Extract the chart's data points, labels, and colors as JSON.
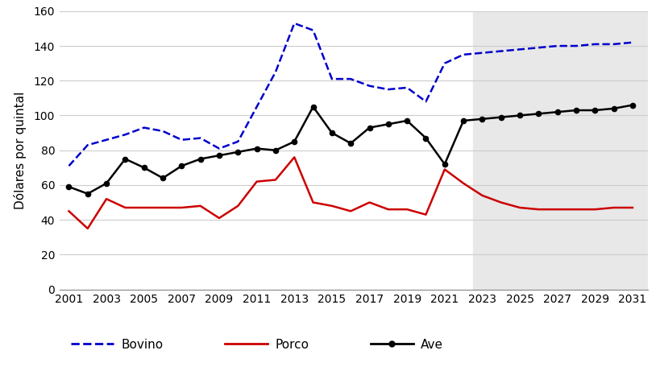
{
  "title": "",
  "ylabel": "Dólares por quintal",
  "bg_color": "#ffffff",
  "shade_color": "#e8e8e8",
  "shade_start": 2022.5,
  "shade_end": 2032,
  "ylim": [
    0,
    160
  ],
  "yticks": [
    0,
    20,
    40,
    60,
    80,
    100,
    120,
    140,
    160
  ],
  "xticks": [
    2001,
    2003,
    2005,
    2007,
    2009,
    2011,
    2013,
    2015,
    2017,
    2019,
    2021,
    2023,
    2025,
    2027,
    2029,
    2031
  ],
  "xlim_left": 2000.5,
  "xlim_right": 2031.8,
  "bovino": {
    "label": "Bovino",
    "color": "#0000cc",
    "years": [
      2001,
      2002,
      2003,
      2004,
      2005,
      2006,
      2007,
      2008,
      2009,
      2010,
      2011,
      2012,
      2013,
      2014,
      2015,
      2016,
      2017,
      2018,
      2019,
      2020,
      2021,
      2022,
      2023,
      2024,
      2025,
      2026,
      2027,
      2028,
      2029,
      2030,
      2031
    ],
    "values": [
      71,
      83,
      86,
      89,
      93,
      91,
      86,
      87,
      81,
      85,
      105,
      125,
      153,
      149,
      121,
      121,
      117,
      115,
      116,
      108,
      130,
      135,
      136,
      137,
      138,
      139,
      140,
      140,
      141,
      141,
      142
    ]
  },
  "porco": {
    "label": "Porco",
    "color": "#cc0000",
    "years": [
      2001,
      2002,
      2003,
      2004,
      2005,
      2006,
      2007,
      2008,
      2009,
      2010,
      2011,
      2012,
      2013,
      2014,
      2015,
      2016,
      2017,
      2018,
      2019,
      2020,
      2021,
      2022,
      2023,
      2024,
      2025,
      2026,
      2027,
      2028,
      2029,
      2030,
      2031
    ],
    "values": [
      45,
      35,
      52,
      47,
      47,
      47,
      47,
      48,
      41,
      48,
      62,
      63,
      76,
      50,
      48,
      45,
      50,
      46,
      46,
      43,
      69,
      61,
      54,
      50,
      47,
      46,
      46,
      46,
      46,
      47,
      47
    ]
  },
  "ave": {
    "label": "Ave",
    "color": "#000000",
    "years": [
      2001,
      2002,
      2003,
      2004,
      2005,
      2006,
      2007,
      2008,
      2009,
      2010,
      2011,
      2012,
      2013,
      2014,
      2015,
      2016,
      2017,
      2018,
      2019,
      2020,
      2021,
      2022,
      2023,
      2024,
      2025,
      2026,
      2027,
      2028,
      2029,
      2030,
      2031
    ],
    "values": [
      59,
      55,
      61,
      75,
      70,
      64,
      71,
      75,
      77,
      79,
      81,
      80,
      85,
      105,
      90,
      84,
      93,
      95,
      97,
      87,
      72,
      97,
      98,
      99,
      100,
      101,
      102,
      103,
      103,
      104,
      106
    ]
  },
  "legend_fontsize": 11,
  "axis_fontsize": 10,
  "ylabel_fontsize": 11,
  "linewidth": 1.8,
  "markersize": 4.5
}
